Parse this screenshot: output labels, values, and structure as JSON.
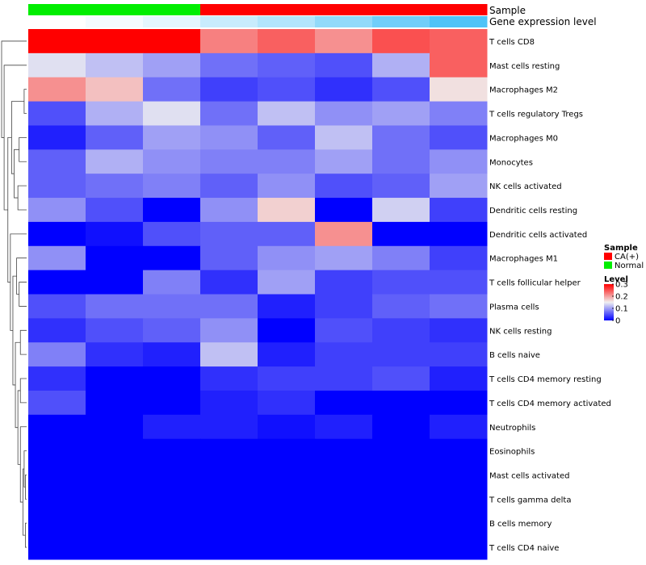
{
  "chart_data": {
    "type": "heatmap",
    "annotation_titles": {
      "sample": "Sample",
      "expression": "Gene expression level"
    },
    "columns": [
      {
        "sample": "Normal",
        "expression": 0.0
      },
      {
        "sample": "Normal",
        "expression": 0.02
      },
      {
        "sample": "Normal",
        "expression": 0.05
      },
      {
        "sample": "CA(+)",
        "expression": 0.1
      },
      {
        "sample": "CA(+)",
        "expression": 0.14
      },
      {
        "sample": "CA(+)",
        "expression": 0.2
      },
      {
        "sample": "CA(+)",
        "expression": 0.26
      },
      {
        "sample": "CA(+)",
        "expression": 0.32
      }
    ],
    "rows": [
      "T cells CD8",
      "Mast cells resting",
      "Macrophages M2",
      "T cells regulatory  Tregs",
      "Macrophages M0",
      "Monocytes",
      "NK cells activated",
      "Dendritic cells resting",
      "Dendritic cells activated",
      "Macrophages M1",
      "T cells follicular helper",
      "Plasma cells",
      "NK cells resting",
      "B cells naive",
      "T cells CD4 memory resting",
      "T cells CD4 memory activated",
      "Neutrophils",
      "Eosinophils",
      "Mast cells activated",
      "T cells gamma delta",
      "B cells memory",
      "T cells CD4 naive"
    ],
    "values": [
      [
        0.3,
        0.3,
        0.3,
        0.22,
        0.24,
        0.21,
        0.25,
        0.24
      ],
      [
        0.14,
        0.12,
        0.1,
        0.07,
        0.06,
        0.05,
        0.11,
        0.24
      ],
      [
        0.21,
        0.18,
        0.07,
        0.04,
        0.05,
        0.03,
        0.05,
        0.16
      ],
      [
        0.05,
        0.11,
        0.14,
        0.07,
        0.12,
        0.09,
        0.1,
        0.08
      ],
      [
        0.02,
        0.06,
        0.1,
        0.09,
        0.06,
        0.12,
        0.07,
        0.05
      ],
      [
        0.06,
        0.11,
        0.09,
        0.08,
        0.08,
        0.1,
        0.07,
        0.09
      ],
      [
        0.06,
        0.07,
        0.08,
        0.06,
        0.09,
        0.05,
        0.06,
        0.1
      ],
      [
        0.09,
        0.05,
        0.0,
        0.09,
        0.17,
        0.0,
        0.13,
        0.04
      ],
      [
        0.0,
        0.01,
        0.05,
        0.06,
        0.06,
        0.21,
        0.0,
        0.0
      ],
      [
        0.09,
        0.0,
        0.0,
        0.06,
        0.09,
        0.1,
        0.08,
        0.04
      ],
      [
        0.0,
        0.0,
        0.08,
        0.03,
        0.1,
        0.04,
        0.05,
        0.05
      ],
      [
        0.05,
        0.07,
        0.07,
        0.07,
        0.02,
        0.04,
        0.06,
        0.07
      ],
      [
        0.03,
        0.05,
        0.06,
        0.09,
        0.0,
        0.05,
        0.04,
        0.03
      ],
      [
        0.08,
        0.03,
        0.02,
        0.12,
        0.02,
        0.04,
        0.04,
        0.04
      ],
      [
        0.03,
        0.0,
        0.0,
        0.03,
        0.04,
        0.04,
        0.05,
        0.02
      ],
      [
        0.05,
        0.0,
        0.0,
        0.02,
        0.03,
        0.0,
        0.0,
        0.0
      ],
      [
        0.0,
        0.0,
        0.02,
        0.02,
        0.01,
        0.02,
        0.0,
        0.02
      ],
      [
        0.0,
        0.0,
        0.0,
        0.0,
        0.0,
        0.0,
        0.0,
        0.0
      ],
      [
        0.0,
        0.0,
        0.0,
        0.0,
        0.0,
        0.0,
        0.0,
        0.0
      ],
      [
        0.0,
        0.0,
        0.0,
        0.0,
        0.0,
        0.0,
        0.0,
        0.0
      ],
      [
        0.0,
        0.0,
        0.0,
        0.0,
        0.0,
        0.0,
        0.0,
        0.0
      ],
      [
        0.0,
        0.0,
        0.0,
        0.0,
        0.0,
        0.0,
        0.0,
        0.0
      ]
    ],
    "color_scale": {
      "min": 0,
      "mid": 0.15,
      "max": 0.3,
      "low": "#0000ff",
      "midcolor": "#f0f0f0",
      "high": "#ff0000"
    },
    "sample_colors": {
      "CA(+)": "#ff0000",
      "Normal": "#00ee00"
    },
    "expression_scale": {
      "min": 0,
      "max": 0.32,
      "low": "#ffffff",
      "high": "#4fc3f7"
    },
    "legend_sample": {
      "title": "Sample",
      "items": [
        {
          "label": "CA(+)",
          "color": "#ff0000"
        },
        {
          "label": "Normal",
          "color": "#00ee00"
        }
      ]
    },
    "legend_level": {
      "title": "Level",
      "ticks": [
        "0.3",
        "0.2",
        "0.1",
        "0"
      ],
      "tick_values": [
        0.3,
        0.2,
        0.1,
        0
      ]
    },
    "dendrogram": [
      {
        "a": 2,
        "b": 3,
        "h": 0.1
      },
      {
        "a": 18,
        "b": 19,
        "h": 0.05
      },
      {
        "a": 20,
        "b": 21,
        "h": 0.05
      },
      {
        "a": 17,
        "b": "m1",
        "h": 0.1
      },
      {
        "a": "m3",
        "b": "m2",
        "h": 0.15
      },
      {
        "a": 16,
        "b": "m4",
        "h": 0.25
      },
      {
        "a": 14,
        "b": 15,
        "h": 0.25
      },
      {
        "a": "m6",
        "b": "m5",
        "h": 0.35
      },
      {
        "a": 12,
        "b": 13,
        "h": 0.25
      },
      {
        "a": "m8",
        "b": "m7",
        "h": 0.45
      },
      {
        "a": 10,
        "b": 11,
        "h": 0.3
      },
      {
        "a": 9,
        "b": "m10",
        "h": 0.4
      },
      {
        "a": "m11",
        "b": "m9",
        "h": 0.55
      },
      {
        "a": 6,
        "b": 7,
        "h": 0.35
      },
      {
        "a": 8,
        "b": "m12",
        "h": 0.65
      },
      {
        "a": 4,
        "b": 5,
        "h": 0.3
      },
      {
        "a": "m15",
        "b": "m13",
        "h": 0.5
      },
      {
        "a": "m0",
        "b": "m16",
        "h": 0.6
      },
      {
        "a": "m14",
        "b": "m17",
        "h": 0.75
      },
      {
        "a": 1,
        "b": "m18",
        "h": 0.9
      },
      {
        "a": 0,
        "b": "m19",
        "h": 1.0
      }
    ]
  }
}
